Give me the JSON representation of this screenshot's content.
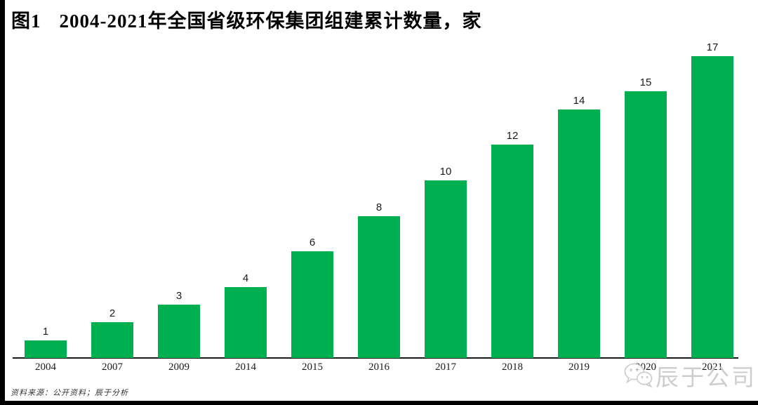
{
  "title": {
    "figure_label": "图1",
    "text": "2004-2021年全国省级环保集团组建累计数量，家"
  },
  "footer": {
    "source": "资料来源：公开资料；辰于分析"
  },
  "watermark": {
    "icon": "wechat-icon",
    "text": "辰于公司"
  },
  "colors": {
    "bar": "#00B050",
    "axis": "#1a1a1a",
    "text": "#000000",
    "watermark": "#c6c6c6",
    "border": "#000000"
  },
  "chart_data": {
    "type": "bar",
    "title": "2004-2021年全国省级环保集团组建累计数量，家",
    "categories": [
      "2004",
      "2007",
      "2009",
      "2014",
      "2015",
      "2016",
      "2017",
      "2018",
      "2019",
      "2020",
      "2021"
    ],
    "values": [
      1,
      2,
      3,
      4,
      6,
      8,
      10,
      12,
      14,
      15,
      17
    ],
    "xlabel": "",
    "ylabel": "",
    "ylim": [
      0,
      17
    ],
    "grid": false,
    "legend": false,
    "data_labels": true,
    "bar_color": "#00B050",
    "unit": "家"
  }
}
